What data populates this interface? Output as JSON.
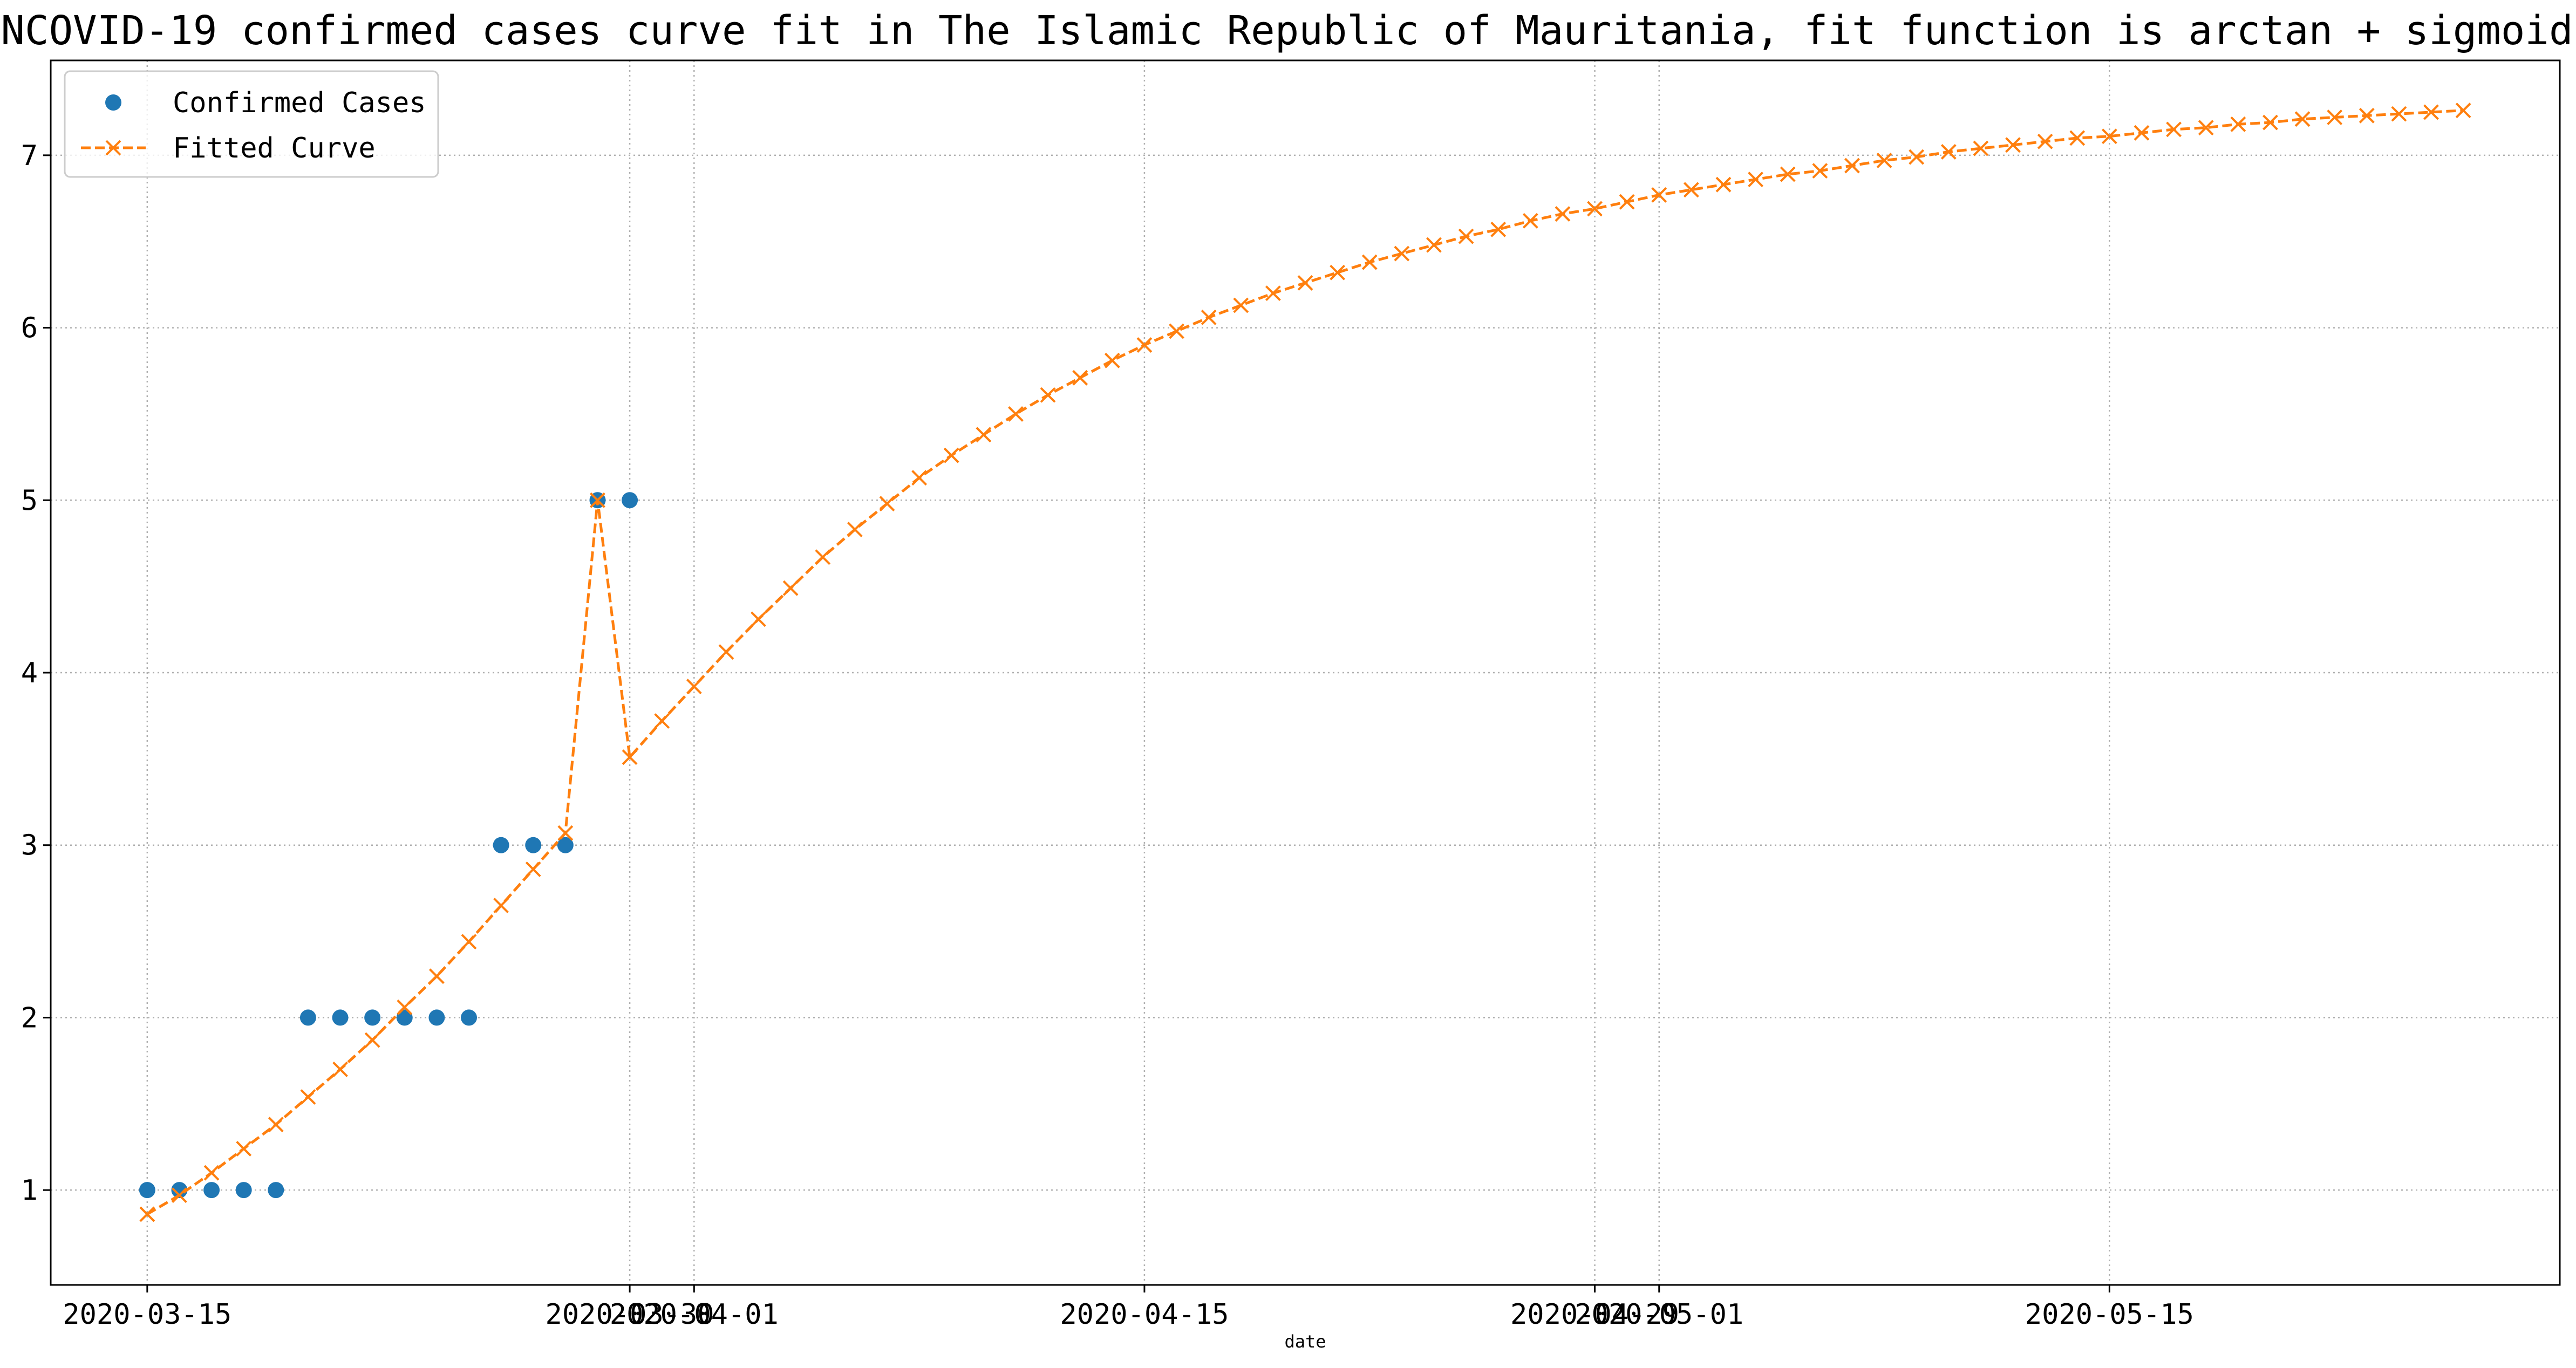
{
  "chart_data": {
    "type": "line",
    "title": "NCOVID-19 confirmed cases curve fit in The Islamic Republic of Mauritania, fit function is arctan + sigmoid",
    "xlabel": "date",
    "ylabel": "",
    "x_ticks": [
      "2020-03-15",
      "2020-03-30",
      "2020-04-01",
      "2020-04-15",
      "2020-04-29",
      "2020-05-01",
      "2020-05-15"
    ],
    "x_range": [
      "2020-03-12",
      "2020-05-29"
    ],
    "y_ticks": [
      1,
      2,
      3,
      4,
      5,
      6,
      7
    ],
    "ylim": [
      0.45,
      7.55
    ],
    "grid": true,
    "legend_position": "top-left",
    "series": [
      {
        "name": "Confirmed Cases",
        "style": "points",
        "color": "#1f77b4",
        "x": [
          "2020-03-15",
          "2020-03-16",
          "2020-03-17",
          "2020-03-18",
          "2020-03-19",
          "2020-03-20",
          "2020-03-21",
          "2020-03-22",
          "2020-03-23",
          "2020-03-24",
          "2020-03-25",
          "2020-03-26",
          "2020-03-27",
          "2020-03-28",
          "2020-03-29",
          "2020-03-30"
        ],
        "values": [
          1,
          1,
          1,
          1,
          1,
          2,
          2,
          2,
          2,
          2,
          2,
          3,
          3,
          3,
          5,
          5
        ]
      },
      {
        "name": "Fitted Curve",
        "style": "dashed-x",
        "color": "#ff7f0e",
        "x": [
          "2020-03-15",
          "2020-03-16",
          "2020-03-17",
          "2020-03-18",
          "2020-03-19",
          "2020-03-20",
          "2020-03-21",
          "2020-03-22",
          "2020-03-23",
          "2020-03-24",
          "2020-03-25",
          "2020-03-26",
          "2020-03-27",
          "2020-03-28",
          "2020-03-29",
          "2020-03-30",
          "2020-03-31",
          "2020-04-01",
          "2020-04-02",
          "2020-04-03",
          "2020-04-04",
          "2020-04-05",
          "2020-04-06",
          "2020-04-07",
          "2020-04-08",
          "2020-04-09",
          "2020-04-10",
          "2020-04-11",
          "2020-04-12",
          "2020-04-13",
          "2020-04-14",
          "2020-04-15",
          "2020-04-16",
          "2020-04-17",
          "2020-04-18",
          "2020-04-19",
          "2020-04-20",
          "2020-04-21",
          "2020-04-22",
          "2020-04-23",
          "2020-04-24",
          "2020-04-25",
          "2020-04-26",
          "2020-04-27",
          "2020-04-28",
          "2020-04-29",
          "2020-04-30",
          "2020-05-01",
          "2020-05-02",
          "2020-05-03",
          "2020-05-04",
          "2020-05-05",
          "2020-05-06",
          "2020-05-07",
          "2020-05-08",
          "2020-05-09",
          "2020-05-10",
          "2020-05-11",
          "2020-05-12",
          "2020-05-13",
          "2020-05-14",
          "2020-05-15",
          "2020-05-16",
          "2020-05-17",
          "2020-05-18",
          "2020-05-19",
          "2020-05-20",
          "2020-05-21",
          "2020-05-22",
          "2020-05-23",
          "2020-05-24",
          "2020-05-25",
          "2020-05-26"
        ],
        "values": [
          0.86,
          0.97,
          1.1,
          1.24,
          1.38,
          1.54,
          1.7,
          1.87,
          2.06,
          2.24,
          2.44,
          2.65,
          2.86,
          3.07,
          5.0,
          3.51,
          3.72,
          3.92,
          4.12,
          4.31,
          4.49,
          4.67,
          4.83,
          4.98,
          5.13,
          5.26,
          5.38,
          5.5,
          5.61,
          5.71,
          5.81,
          5.9,
          5.98,
          6.06,
          6.13,
          6.2,
          6.26,
          6.32,
          6.38,
          6.43,
          6.48,
          6.53,
          6.57,
          6.62,
          6.66,
          6.69,
          6.73,
          6.77,
          6.8,
          6.83,
          6.86,
          6.89,
          6.91,
          6.94,
          6.97,
          6.99,
          7.02,
          7.04,
          7.06,
          7.08,
          7.1,
          7.11,
          7.13,
          7.15,
          7.16,
          7.18,
          7.19,
          7.21,
          7.22,
          7.23,
          7.24,
          7.25,
          7.26
        ]
      }
    ]
  }
}
